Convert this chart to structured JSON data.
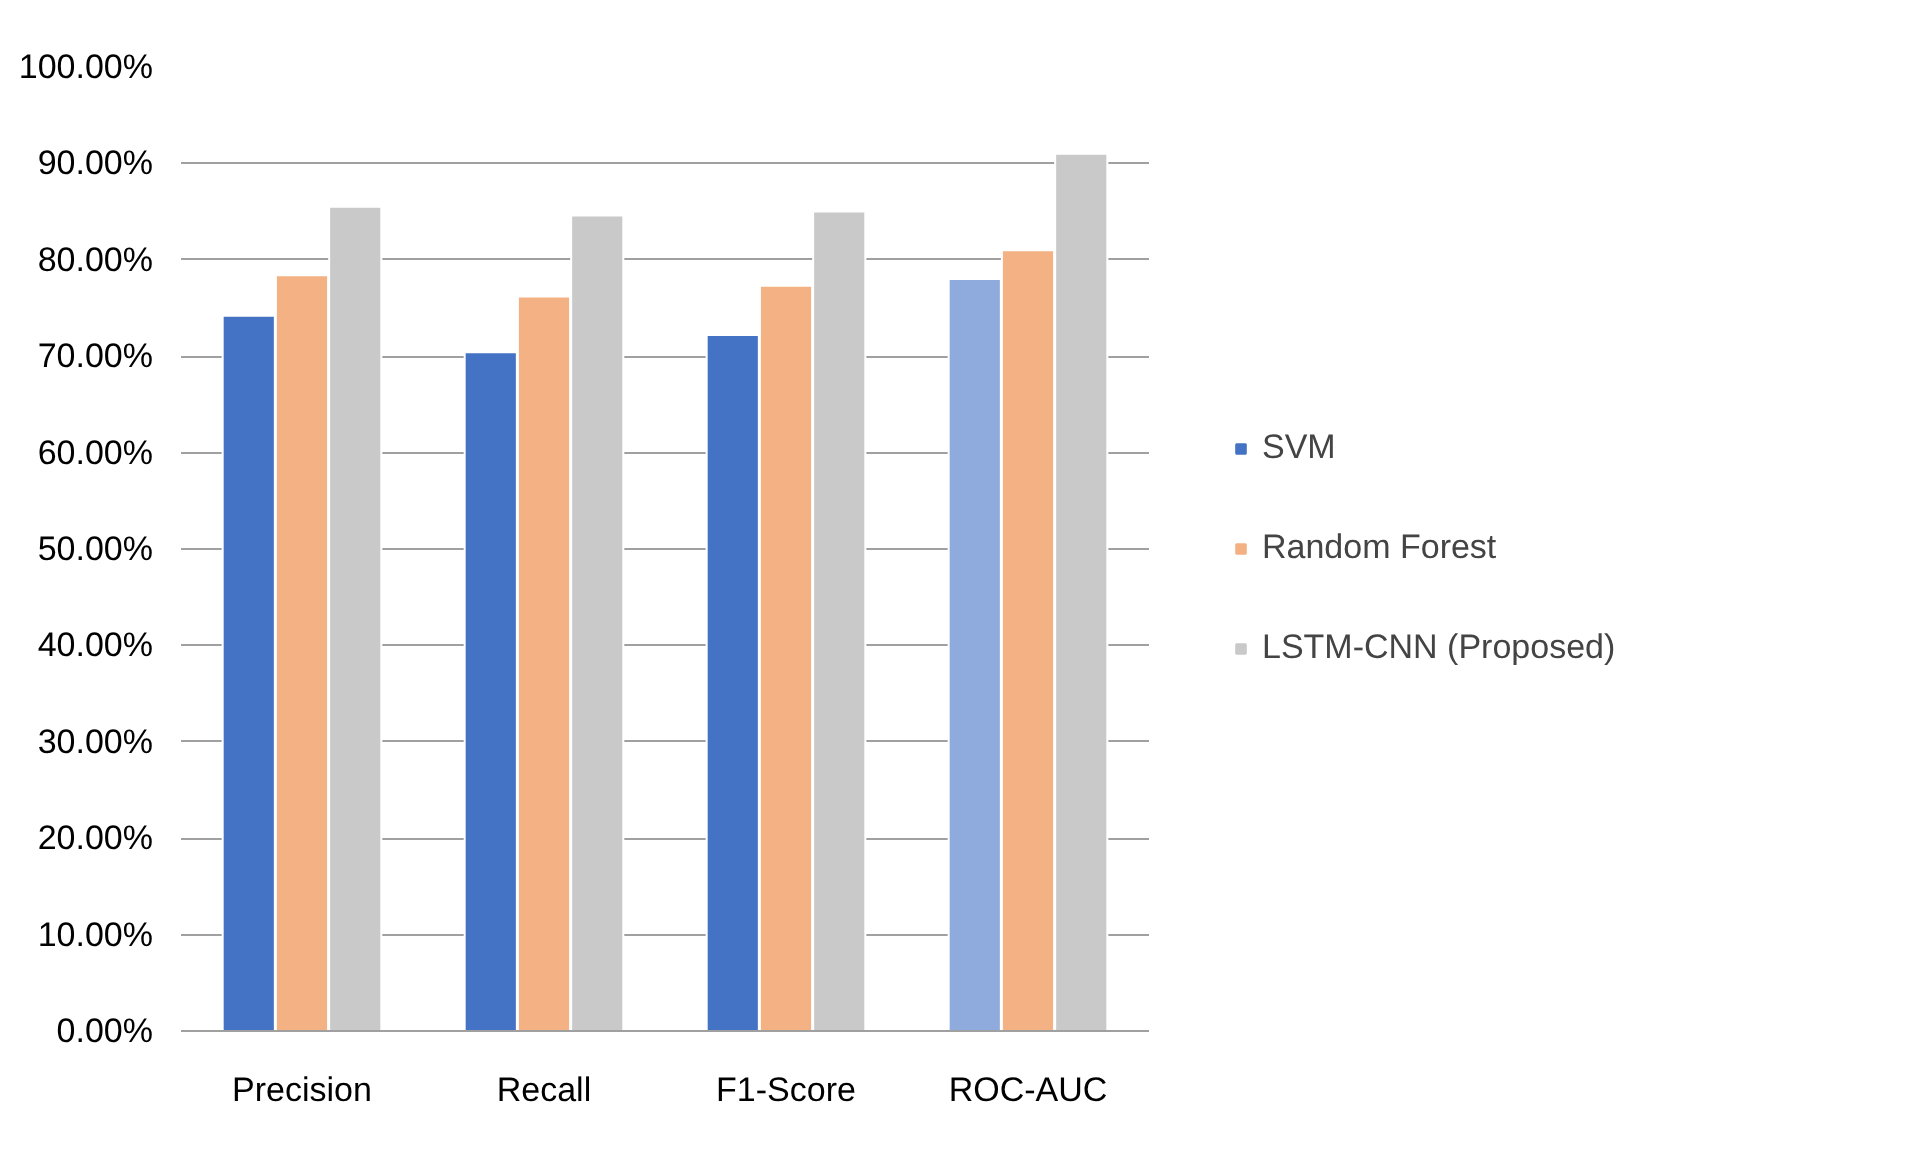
{
  "chart_data": {
    "type": "bar",
    "categories": [
      "Precision",
      "Recall",
      "F1-Score",
      "ROC-AUC"
    ],
    "series": [
      {
        "name": "SVM",
        "color": "#4472c4",
        "colors": [
          "#4472c4",
          "#4472c4",
          "#4472c4",
          "#8faadc"
        ],
        "values": [
          74.2,
          70.4,
          72.2,
          78.0
        ]
      },
      {
        "name": "Random Forest",
        "color": "#f4b183",
        "values": [
          78.4,
          76.2,
          77.3,
          81.0
        ]
      },
      {
        "name": "LSTM-CNN (Proposed)",
        "color": "#c9c9c9",
        "values": [
          85.5,
          84.6,
          85.0,
          91.0
        ]
      }
    ],
    "ylim": [
      0,
      100
    ],
    "yticks": [
      {
        "value": 0,
        "label": "0.00%"
      },
      {
        "value": 10,
        "label": "10.00%"
      },
      {
        "value": 20,
        "label": "20.00%"
      },
      {
        "value": 30,
        "label": "30.00%"
      },
      {
        "value": 40,
        "label": "40.00%"
      },
      {
        "value": 50,
        "label": "50.00%"
      },
      {
        "value": 60,
        "label": "60.00%"
      },
      {
        "value": 70,
        "label": "70.00%"
      },
      {
        "value": 80,
        "label": "80.00%"
      },
      {
        "value": 90,
        "label": "90.00%"
      },
      {
        "value": 100,
        "label": "100.00%"
      }
    ],
    "grid": "y",
    "legend": "right"
  }
}
